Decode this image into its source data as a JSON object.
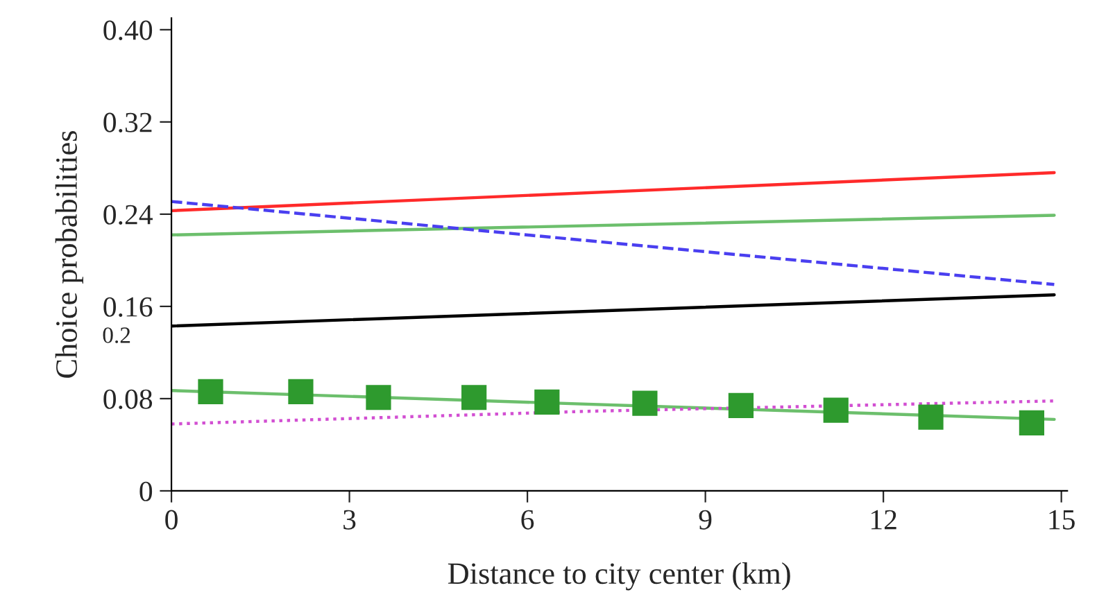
{
  "chart_data": {
    "type": "line",
    "xlabel": "Distance to city center (km)",
    "ylabel": "Choice probabilities",
    "xlim": [
      0,
      15.1
    ],
    "xticks": [
      0,
      3,
      6,
      9,
      12,
      15
    ],
    "ylim": [
      0,
      0.41
    ],
    "yticks": [
      0,
      {
        "value": 0.08,
        "label": "0.08"
      },
      {
        "value": 0.16,
        "label": "0.16"
      },
      {
        "value": 0.24,
        "label": "0.24"
      },
      {
        "value": 0.32,
        "label": "0.32"
      },
      {
        "value": 0.4,
        "label": "0.40"
      }
    ],
    "grid": false,
    "annotations": [
      "0.2"
    ],
    "series": [
      {
        "color": "#ff2a2a",
        "line_style": "solid",
        "x": [
          0,
          14.88
        ],
        "values": [
          0.243,
          0.276
        ]
      },
      {
        "color": "#6cbf6c",
        "line_style": "solid",
        "x": [
          0,
          14.88
        ],
        "values": [
          0.222,
          0.239
        ]
      },
      {
        "color": "#4a3ff0",
        "line_style": "dashed",
        "x": [
          0,
          14.88
        ],
        "values": [
          0.251,
          0.179
        ]
      },
      {
        "color": "#000000",
        "line_style": "solid",
        "x": [
          0,
          14.88
        ],
        "values": [
          0.143,
          0.17
        ]
      },
      {
        "color": "#6cbf6c",
        "line_style": "solid",
        "x": [
          0,
          14.88
        ],
        "values": [
          0.087,
          0.062
        ]
      },
      {
        "color": "#d24fd2",
        "line_style": "dotted",
        "x": [
          0,
          7,
          14.88
        ],
        "values": [
          0.058,
          0.069,
          0.078
        ]
      },
      {
        "type": "scatter",
        "color": "#2e9a2e",
        "marker": "square",
        "x": [
          0.66,
          2.18,
          3.49,
          5.1,
          6.33,
          7.98,
          9.6,
          11.2,
          12.8,
          14.5
        ],
        "values": [
          0.086,
          0.086,
          0.081,
          0.081,
          0.077,
          0.076,
          0.074,
          0.07,
          0.064,
          0.059
        ]
      }
    ]
  }
}
